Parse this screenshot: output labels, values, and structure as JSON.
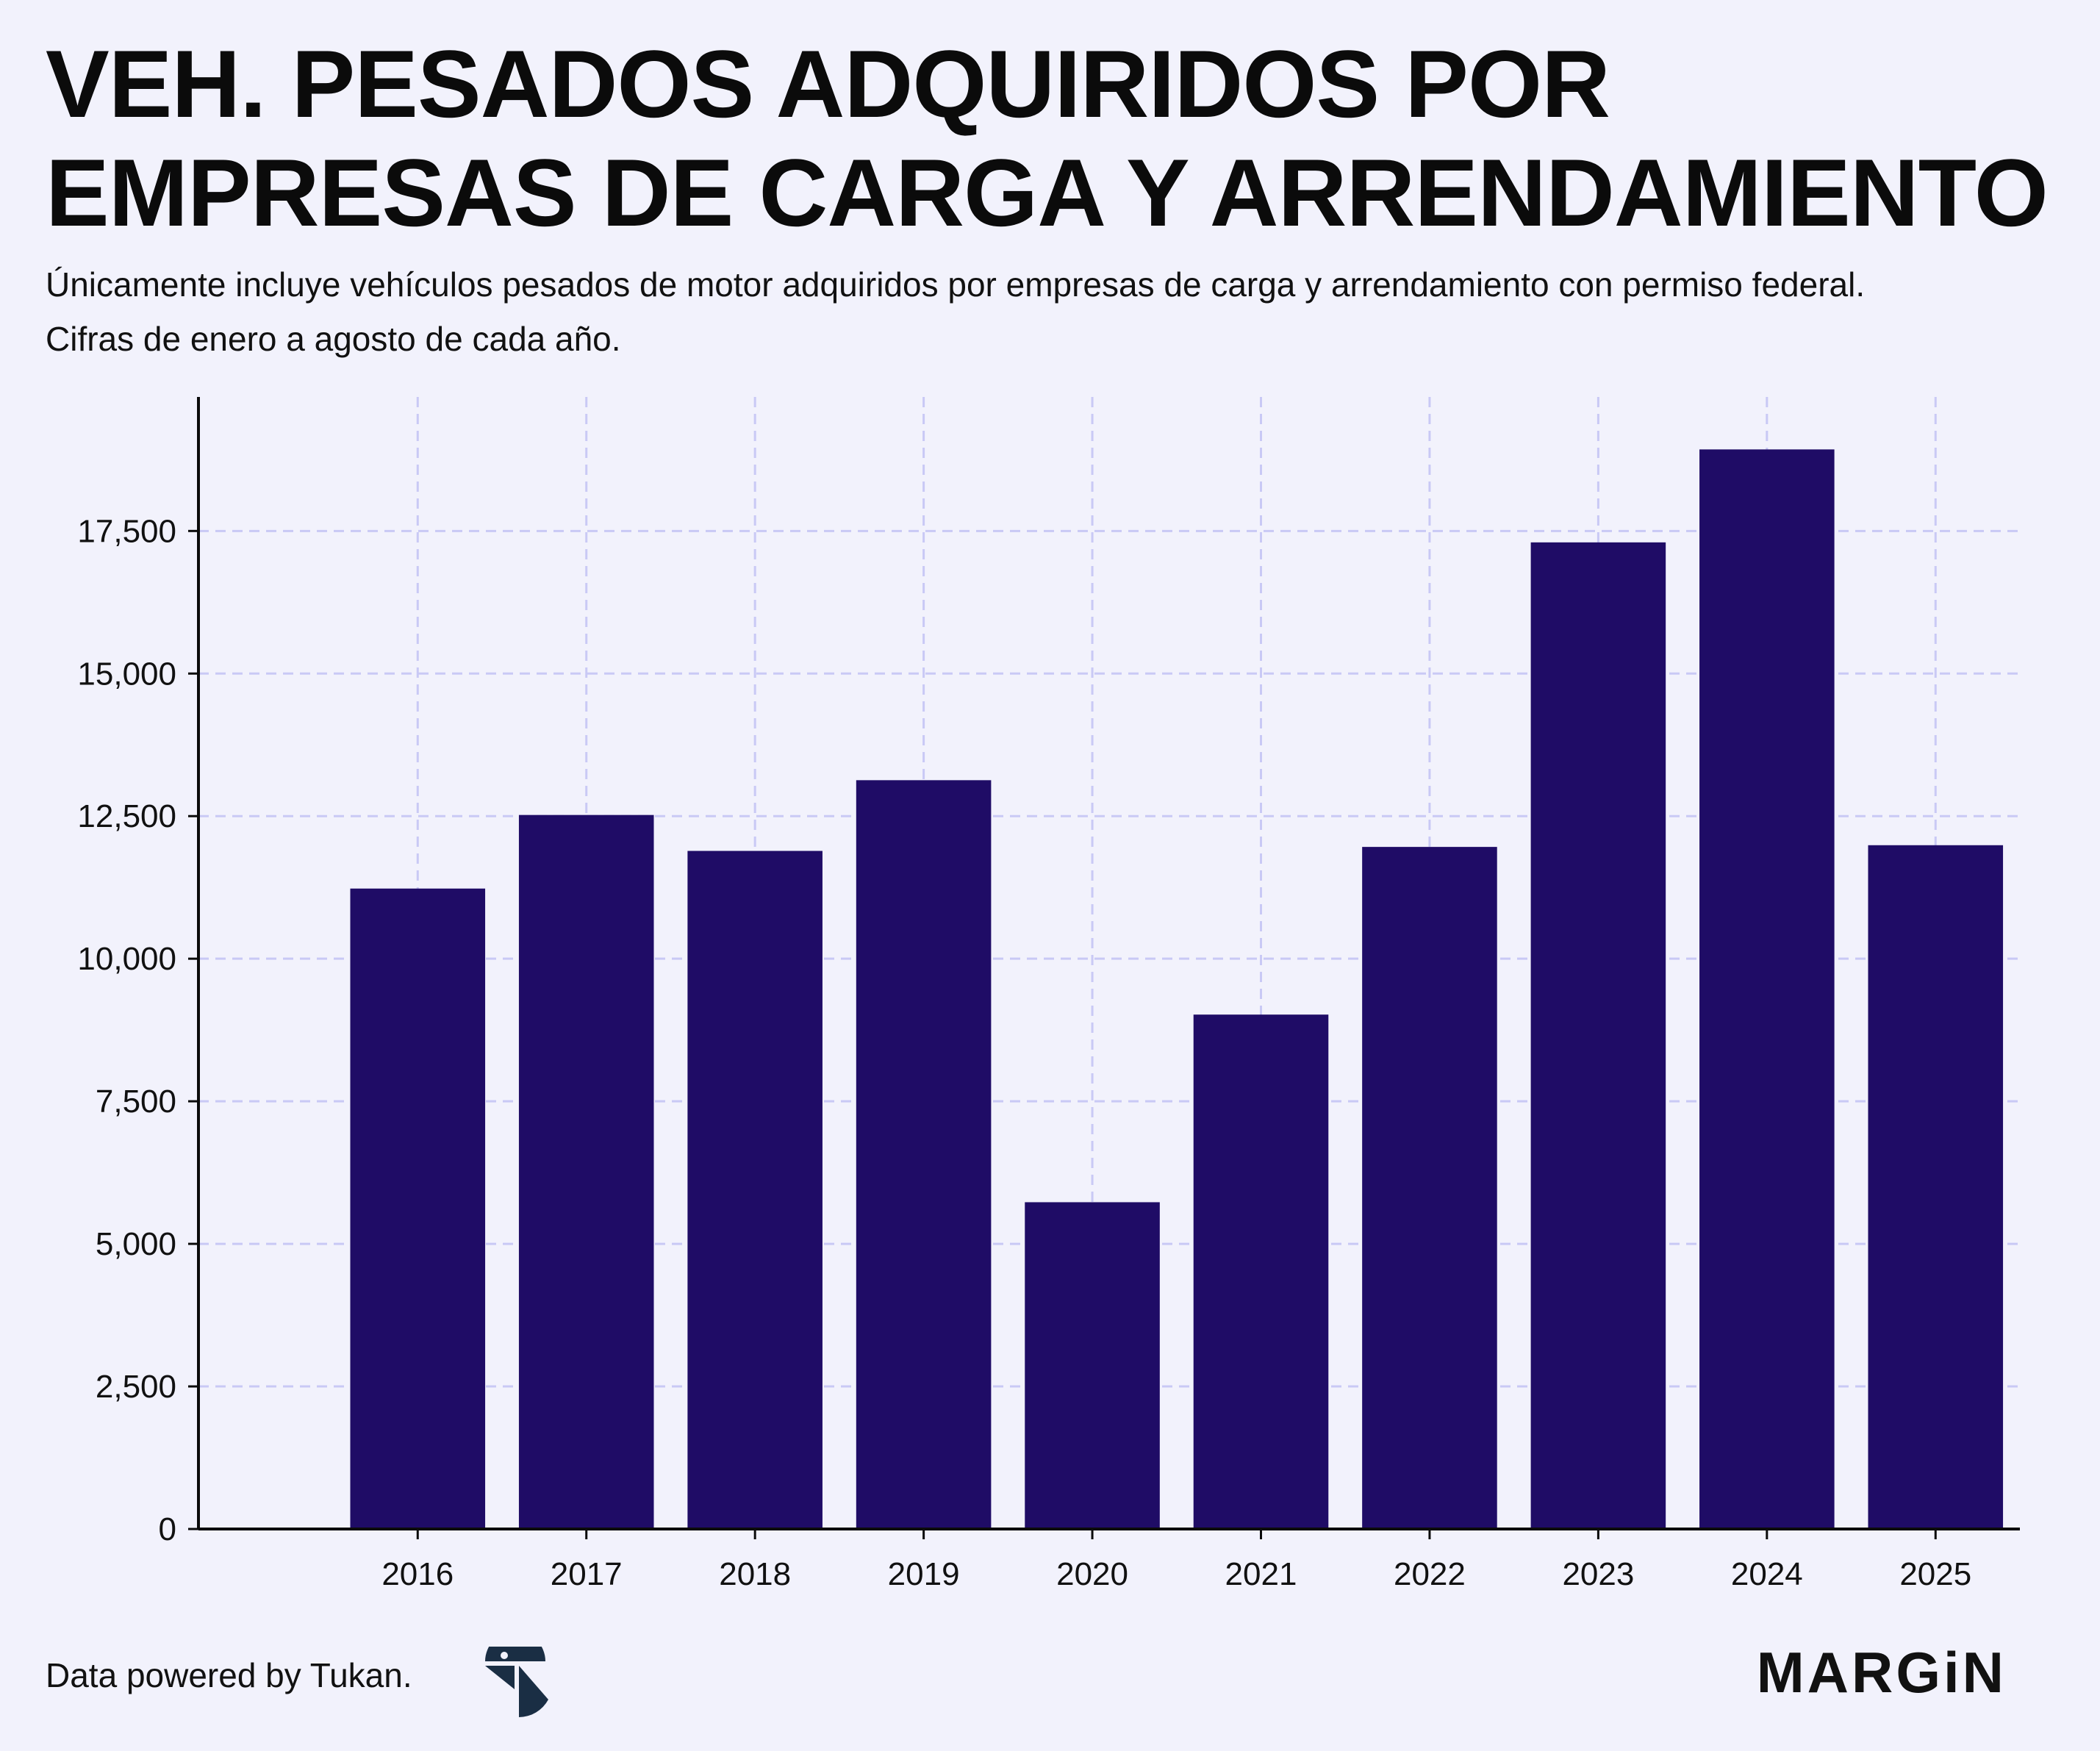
{
  "title": "VEH. PESADOS ADQUIRIDOS POR EMPRESAS DE CARGA Y ARRENDAMIENTO",
  "subtitle": "Únicamente incluye vehículos pesados de motor adquiridos por empresas de carga y arrendamiento con permiso federal. Cifras de enero a agosto de cada año.",
  "footer": {
    "credit": "Data powered by Tukan.",
    "brand": "MARGiN",
    "logo_icon": "tukan-logo-icon"
  },
  "colors": {
    "background": "#f2f2fc",
    "bar": "#1f0c66",
    "grid": "#c9c9f5",
    "axis": "#0b0b0b"
  },
  "chart_data": {
    "type": "bar",
    "title": "VEH. PESADOS ADQUIRIDOS POR EMPRESAS DE CARGA Y ARRENDAMIENTO",
    "xlabel": "",
    "ylabel": "",
    "categories": [
      "2016",
      "2017",
      "2018",
      "2019",
      "2020",
      "2021",
      "2022",
      "2023",
      "2024",
      "2025"
    ],
    "values": [
      11230,
      12520,
      11890,
      13130,
      5730,
      9020,
      11960,
      17300,
      18930,
      11990
    ],
    "ylim": [
      0,
      19850
    ],
    "yticks": [
      0,
      2500,
      5000,
      7500,
      10000,
      12500,
      15000,
      17500
    ],
    "ytick_labels": [
      "0",
      "2,500",
      "5,000",
      "7,500",
      "10,000",
      "12,500",
      "15,000",
      "17,500"
    ],
    "grid": true,
    "legend": "none"
  }
}
